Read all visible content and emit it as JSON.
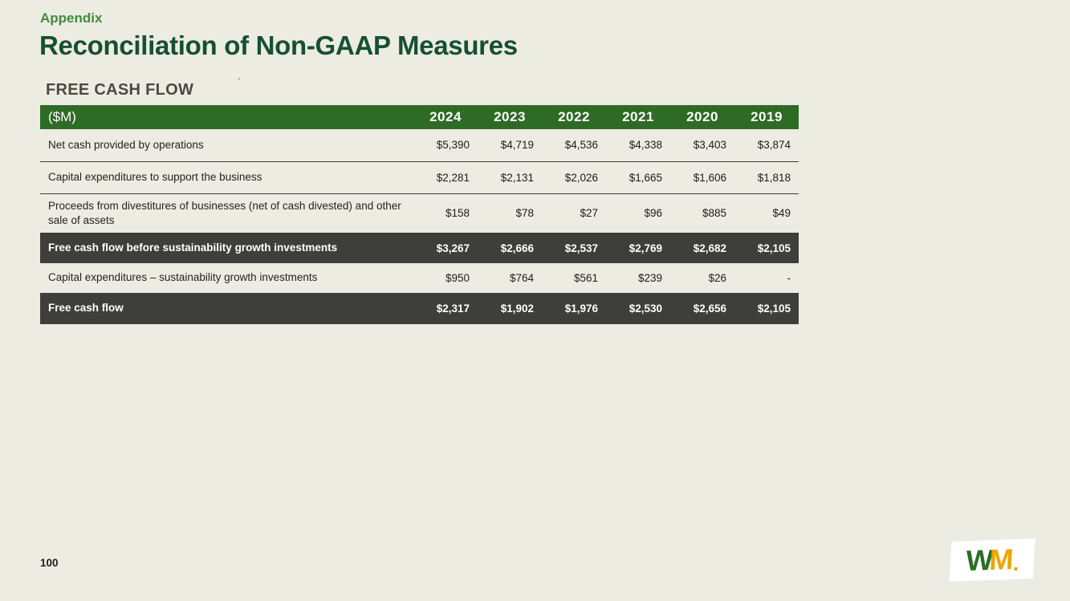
{
  "slide": {
    "eyebrow": "Appendix",
    "title": "Reconciliation of Non-GAAP Measures",
    "footnote_marker": ".",
    "page_number": "100"
  },
  "table": {
    "section_title": "FREE CASH FLOW",
    "unit_header": "($M)",
    "year_columns": [
      "2024",
      "2023",
      "2022",
      "2021",
      "2020",
      "2019"
    ],
    "rows": [
      {
        "label": "Net cash provided by operations",
        "values": [
          "$5,390",
          "$4,719",
          "$4,536",
          "$4,338",
          "$3,403",
          "$3,874"
        ],
        "emphasis": false
      },
      {
        "label": "Capital expenditures to support the business",
        "values": [
          "$2,281",
          "$2,131",
          "$2,026",
          "$1,665",
          "$1,606",
          "$1,818"
        ],
        "emphasis": false
      },
      {
        "label": "Proceeds from divestitures of businesses (net of cash divested) and other sale of assets",
        "values": [
          "$158",
          "$78",
          "$27",
          "$96",
          "$885",
          "$49"
        ],
        "emphasis": false
      },
      {
        "label": "Free cash flow before sustainability growth investments",
        "values": [
          "$3,267",
          "$2,666",
          "$2,537",
          "$2,769",
          "$2,682",
          "$2,105"
        ],
        "emphasis": true
      },
      {
        "label": "Capital expenditures – sustainability growth investments",
        "values": [
          "$950",
          "$764",
          "$561",
          "$239",
          "$26",
          "-"
        ],
        "emphasis": false
      },
      {
        "label": "Free cash flow",
        "values": [
          "$2,317",
          "$1,902",
          "$1,976",
          "$2,530",
          "$2,656",
          "$2,105"
        ],
        "emphasis": true
      }
    ]
  },
  "logo": {
    "letters": [
      "W",
      "M"
    ]
  },
  "colors": {
    "background": "#ECECE2",
    "header_green": "#2E6B26",
    "dark_row": "#3E3E3B",
    "title_green": "#174F33",
    "eyebrow_green": "#3F8C3A",
    "section_gray": "#4A4A42",
    "logo_w_green": "#2C6D26",
    "logo_m_gold": "#EDA500"
  }
}
